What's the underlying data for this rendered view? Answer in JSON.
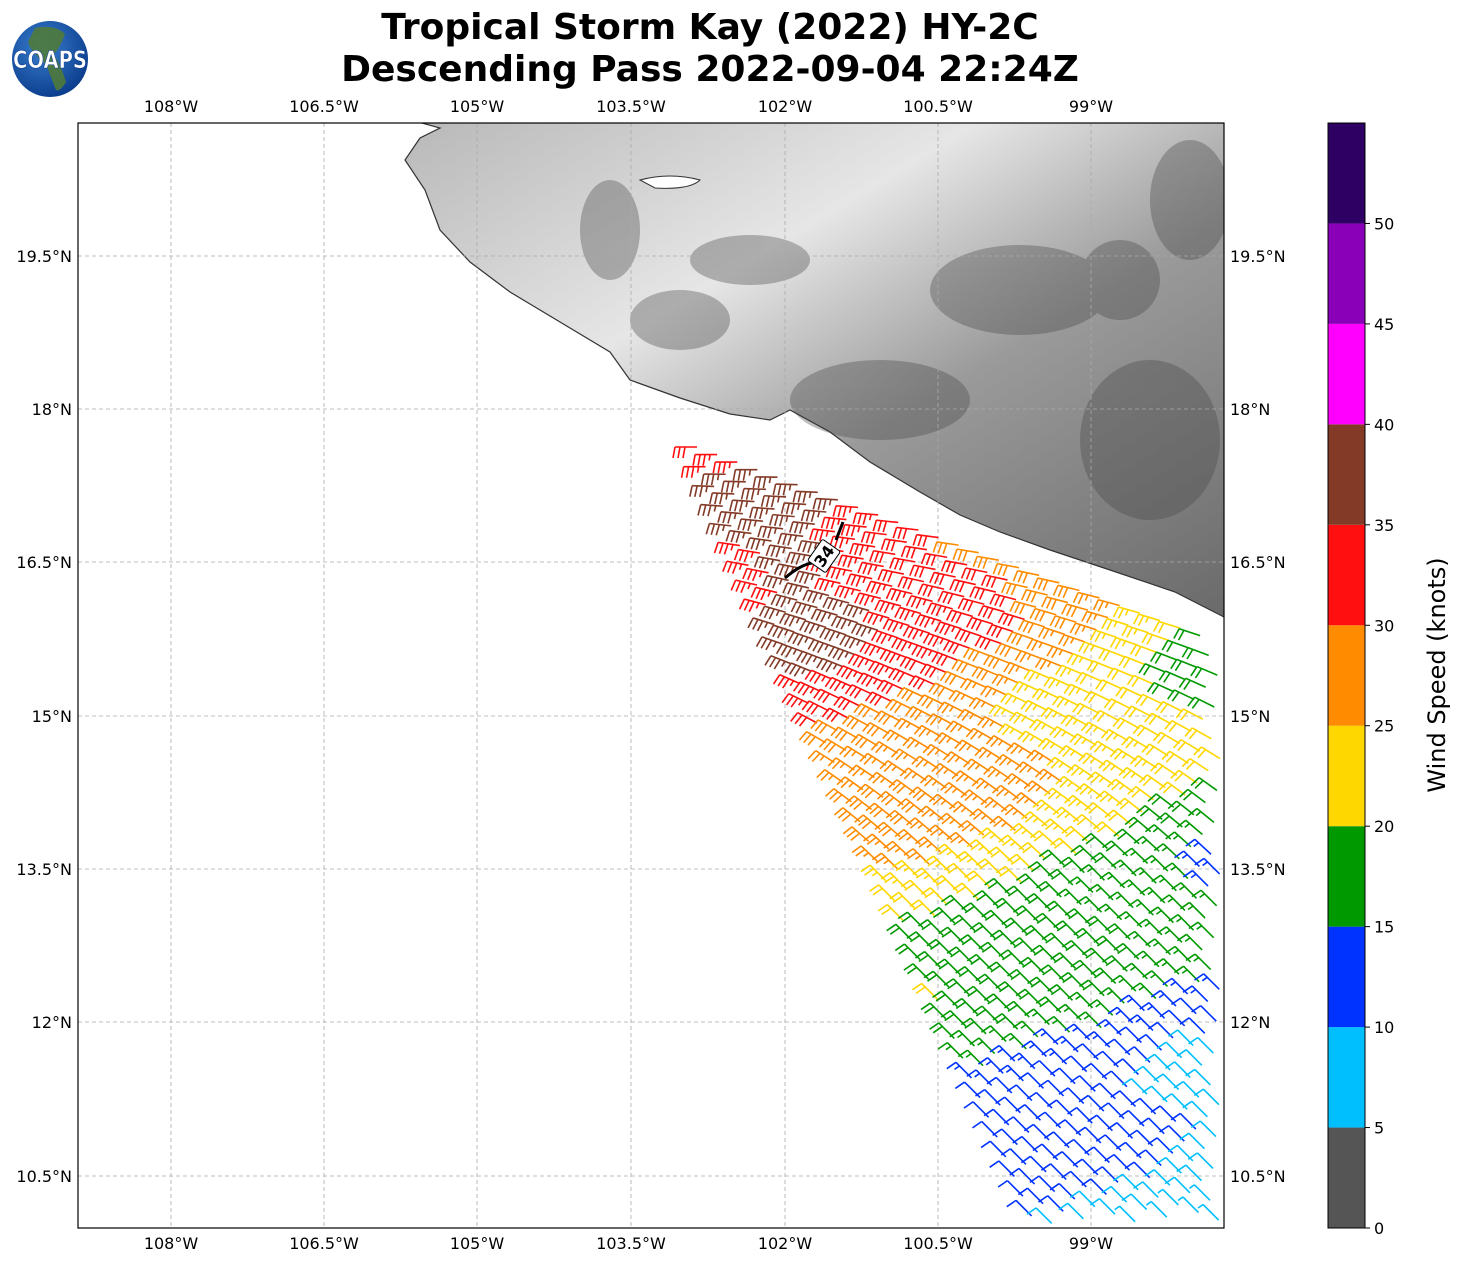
{
  "title": {
    "line1": "Tropical Storm Kay (2022) HY-2C",
    "line2": "Descending Pass 2022-09-04 22:24Z"
  },
  "logo": {
    "text": "COAPS"
  },
  "map": {
    "lon_ticks": [
      "108°W",
      "106.5°W",
      "105°W",
      "103.5°W",
      "102°W",
      "100.5°W",
      "99°W"
    ],
    "lat_ticks": [
      "19.5°N",
      "18°N",
      "16.5°N",
      "15°N",
      "13.5°N",
      "12°N",
      "10.5°N"
    ],
    "contour_label": "34"
  },
  "colorbar": {
    "label": "Wind Speed (knots)",
    "ticks": [
      "0",
      "5",
      "10",
      "15",
      "20",
      "25",
      "30",
      "35",
      "40",
      "45",
      "50"
    ],
    "bands": [
      {
        "min": 0,
        "max": 5,
        "color": "#555555"
      },
      {
        "min": 5,
        "max": 10,
        "color": "#00bfff"
      },
      {
        "min": 10,
        "max": 15,
        "color": "#0033ff"
      },
      {
        "min": 15,
        "max": 20,
        "color": "#009900"
      },
      {
        "min": 20,
        "max": 25,
        "color": "#ffd700"
      },
      {
        "min": 25,
        "max": 30,
        "color": "#ff8c00"
      },
      {
        "min": 30,
        "max": 35,
        "color": "#ff0f0f"
      },
      {
        "min": 35,
        "max": 40,
        "color": "#833a27"
      },
      {
        "min": 40,
        "max": 45,
        "color": "#ff00ff"
      },
      {
        "min": 45,
        "max": 50,
        "color": "#8a00b8"
      },
      {
        "min": 50,
        "max": 55,
        "color": "#2e0063"
      }
    ]
  }
}
